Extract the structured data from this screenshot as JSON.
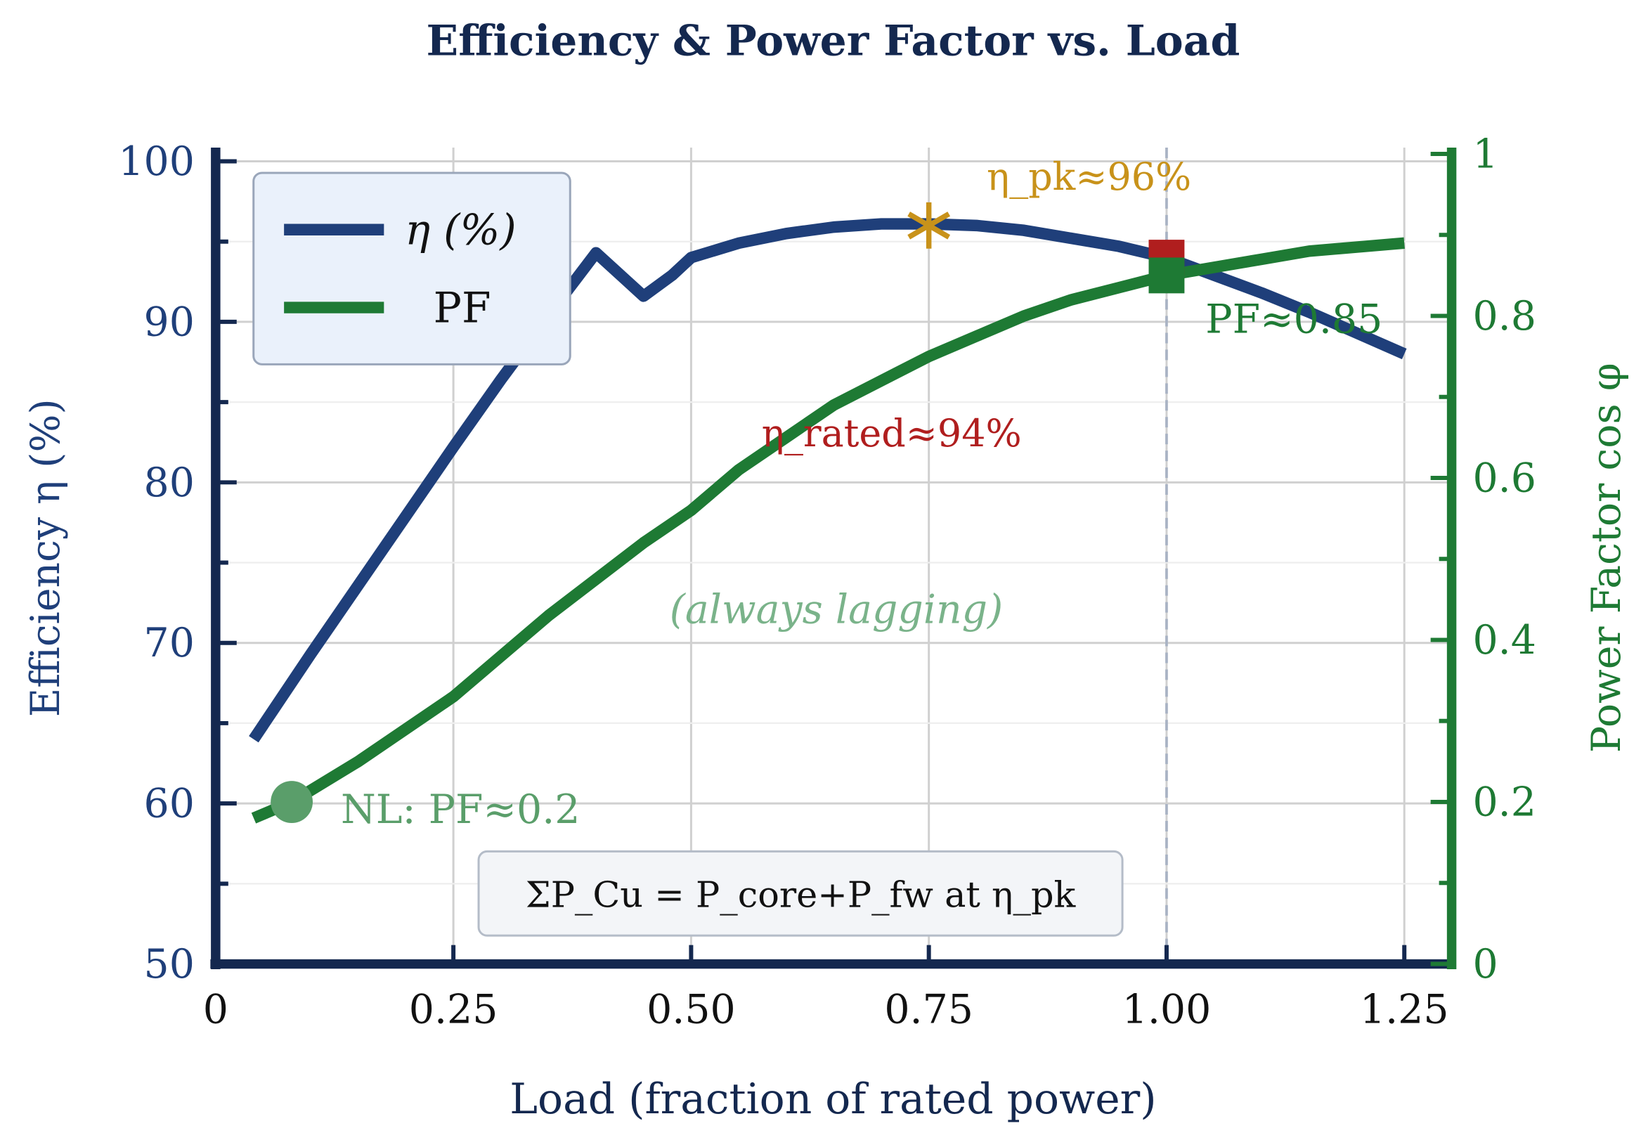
{
  "chart_data": {
    "type": "line",
    "title": "Efficiency & Power Factor vs. Load",
    "xlabel": "Load (fraction of rated power)",
    "ylabel_left": "Efficiency η (%)",
    "ylabel_right": "Power Factor cos φ",
    "xlim": [
      0,
      1.3
    ],
    "ylim_left": [
      50,
      100
    ],
    "ylim_right": [
      0,
      1
    ],
    "xticks": [
      "0",
      "0.25",
      "0.50",
      "0.75",
      "1.00",
      "1.25"
    ],
    "xtick_values": [
      0,
      0.25,
      0.5,
      0.75,
      1.0,
      1.25
    ],
    "yticks_left": [
      "50",
      "60",
      "70",
      "80",
      "90",
      "100"
    ],
    "ytick_left_values": [
      50,
      60,
      70,
      80,
      90,
      100
    ],
    "yticks_right": [
      "0",
      "0.2",
      "0.4",
      "0.6",
      "0.8",
      "1"
    ],
    "ytick_right_values": [
      0,
      0.2,
      0.4,
      0.6,
      0.8,
      1
    ],
    "grid": true,
    "legend_placement": "top-left",
    "series": [
      {
        "name": "η (%)",
        "axis": "left",
        "color": "#1f3f7a",
        "x": [
          0.04,
          0.1,
          0.15,
          0.2,
          0.25,
          0.3,
          0.35,
          0.4,
          0.45,
          0.48,
          0.5,
          0.55,
          0.6,
          0.65,
          0.7,
          0.75,
          0.8,
          0.85,
          0.9,
          0.95,
          1.0,
          1.05,
          1.1,
          1.15,
          1.2,
          1.25
        ],
        "y": [
          64,
          69.3,
          73.6,
          77.9,
          82.2,
          86.4,
          90.4,
          94.3,
          91.6,
          92.9,
          94,
          94.9,
          95.5,
          95.9,
          96.1,
          96.1,
          96.0,
          95.7,
          95.2,
          94.7,
          94,
          92.9,
          91.8,
          90.6,
          89.3,
          88
        ]
      },
      {
        "name": "PF",
        "axis": "right",
        "color": "#1e7a34",
        "x": [
          0.04,
          0.08,
          0.15,
          0.25,
          0.35,
          0.45,
          0.5,
          0.55,
          0.6,
          0.65,
          0.7,
          0.75,
          0.8,
          0.85,
          0.9,
          0.95,
          1.0,
          1.05,
          1.1,
          1.15,
          1.2,
          1.25
        ],
        "y": [
          0.18,
          0.2,
          0.25,
          0.33,
          0.43,
          0.52,
          0.56,
          0.61,
          0.65,
          0.69,
          0.72,
          0.75,
          0.775,
          0.8,
          0.82,
          0.835,
          0.85,
          0.86,
          0.87,
          0.88,
          0.885,
          0.89
        ]
      }
    ],
    "annotations": {
      "peak": {
        "text": "η_pk≈96%",
        "x": 0.75,
        "y": 96,
        "color": "#c8921a"
      },
      "rated": {
        "text": "η_rated≈94%",
        "x": 1.0,
        "y": 94,
        "color": "#b01e1e"
      },
      "pf_rated": {
        "text": "PF≈0.85",
        "x": 1.0,
        "y": 0.85,
        "color": "#1e7a34"
      },
      "no_load": {
        "text": "NL: PF≈0.2",
        "x": 0.08,
        "y": 0.2,
        "color": "#5a9e6a"
      },
      "lagging": {
        "text": "(always lagging)",
        "color": "#7ab38a"
      },
      "box": {
        "text": "ΣP_Cu = P_core+P_fw at η_pk"
      },
      "rated_line_x": 1.0
    }
  }
}
